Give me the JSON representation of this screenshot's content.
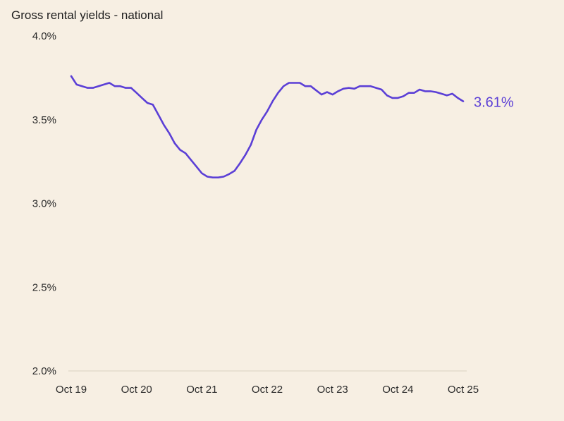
{
  "chart_data": {
    "type": "line",
    "title": "Gross rental yields - national",
    "xlabel": "",
    "ylabel": "",
    "ylim": [
      2.0,
      4.0
    ],
    "yticks": [
      "2.0%",
      "2.5%",
      "3.0%",
      "3.5%",
      "4.0%"
    ],
    "ytick_values": [
      2.0,
      2.5,
      3.0,
      3.5,
      4.0
    ],
    "xticks": [
      "Oct 19",
      "Oct 20",
      "Oct 21",
      "Oct 22",
      "Oct 23",
      "Oct 24",
      "Oct 25"
    ],
    "x_start": "2019-10",
    "x_end": "2025-10",
    "x_frequency": "monthly",
    "grid": false,
    "end_label": "3.61%",
    "line_color": "#5b3fd6",
    "series": [
      {
        "values": [
          3.76,
          3.71,
          3.7,
          3.69,
          3.69,
          3.7,
          3.71,
          3.72,
          3.7,
          3.7,
          3.69,
          3.69,
          3.66,
          3.63,
          3.6,
          3.59,
          3.53,
          3.47,
          3.42,
          3.36,
          3.32,
          3.3,
          3.26,
          3.22,
          3.18,
          3.16,
          3.155,
          3.155,
          3.16,
          3.175,
          3.195,
          3.24,
          3.29,
          3.35,
          3.44,
          3.5,
          3.55,
          3.61,
          3.66,
          3.7,
          3.72,
          3.72,
          3.72,
          3.7,
          3.7,
          3.675,
          3.65,
          3.665,
          3.65,
          3.67,
          3.685,
          3.69,
          3.685,
          3.7,
          3.7,
          3.7,
          3.69,
          3.68,
          3.645,
          3.63,
          3.63,
          3.64,
          3.66,
          3.66,
          3.68,
          3.67,
          3.67,
          3.665,
          3.655,
          3.645,
          3.655,
          3.63,
          3.61
        ]
      }
    ]
  }
}
